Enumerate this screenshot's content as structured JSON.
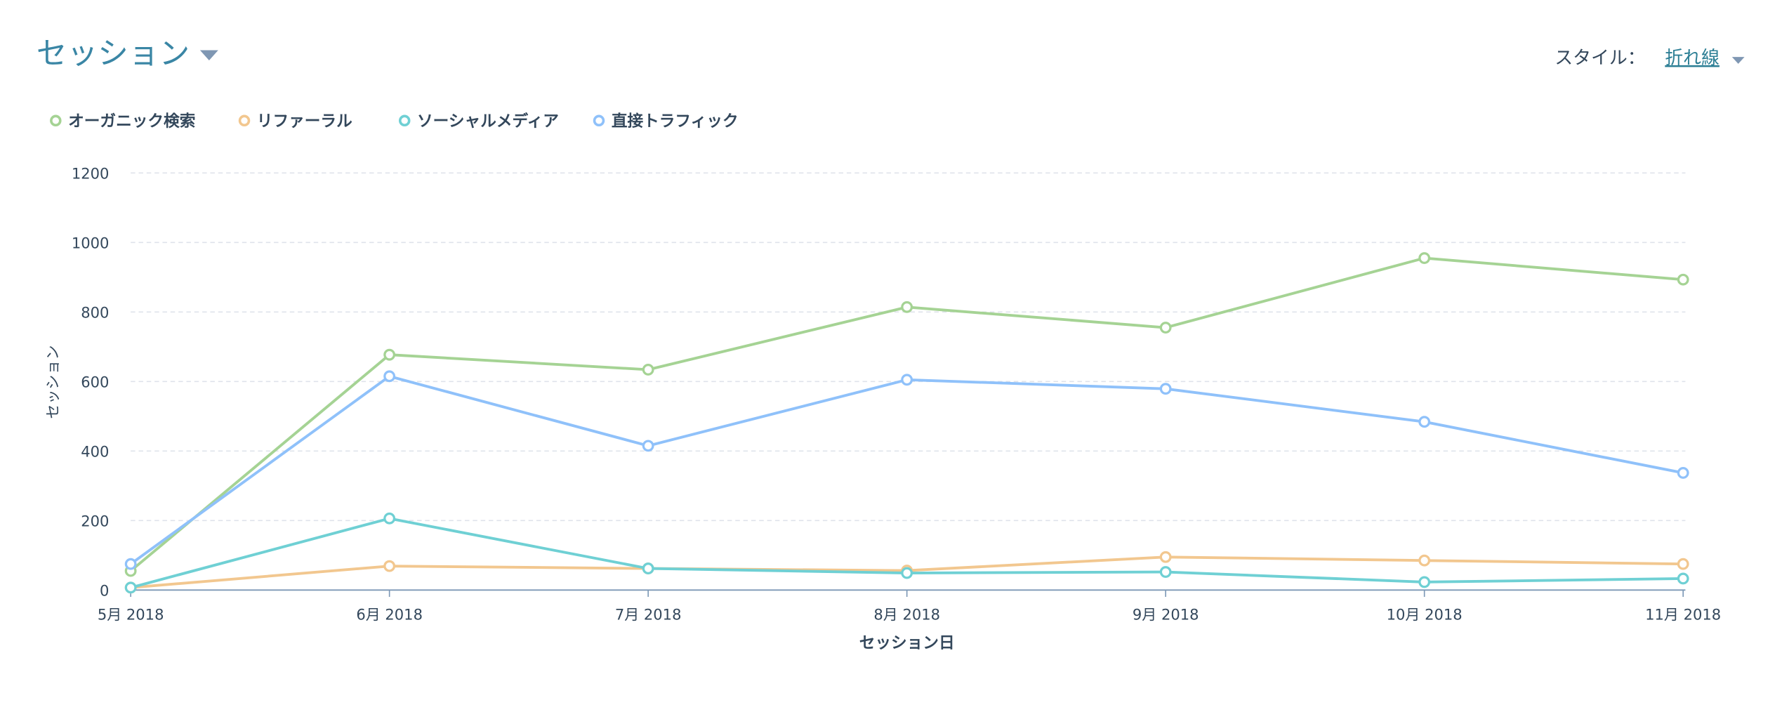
{
  "header": {
    "title": "セッション",
    "style_label": "スタイル：",
    "style_value": "折れ線"
  },
  "colors": {
    "title": "#3a86a5",
    "text": "#33475b",
    "caret": "#7f97b3",
    "grid": "#dfe3eb",
    "axis": "#7c98b6"
  },
  "chart_data": {
    "type": "line",
    "title": "セッション",
    "xlabel": "セッション日",
    "ylabel": "セッション",
    "ylim": [
      0,
      1200
    ],
    "yticks": [
      "0",
      "200",
      "400",
      "600",
      "800",
      "1000",
      "1200"
    ],
    "categories": [
      "5月 2018",
      "6月 2018",
      "7月 2018",
      "8月 2018",
      "9月 2018",
      "10月 2018",
      "11月 2018"
    ],
    "grid": true,
    "legend_position": "top-left",
    "series": [
      {
        "name": "オーガニック検索",
        "color": "#a5d394",
        "values": [
          55,
          677,
          634,
          814,
          755,
          955,
          893
        ]
      },
      {
        "name": "リファーラル",
        "color": "#f2c78f",
        "values": [
          7,
          69,
          62,
          56,
          95,
          85,
          75
        ]
      },
      {
        "name": "ソーシャルメディア",
        "color": "#6fd0d4",
        "values": [
          7,
          206,
          62,
          49,
          52,
          23,
          33
        ]
      },
      {
        "name": "直接トラフィック",
        "color": "#8fc1fa",
        "values": [
          75,
          615,
          415,
          605,
          579,
          484,
          337
        ]
      }
    ]
  }
}
